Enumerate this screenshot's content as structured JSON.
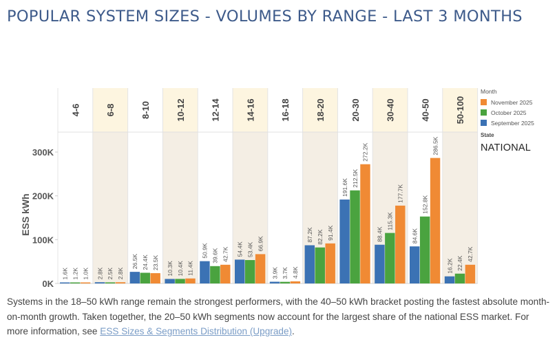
{
  "header": {
    "title": "POPULAR SYSTEM SIZES - VOLUMES BY RANGE - LAST 3 MONTHS"
  },
  "legend": {
    "title": "Month",
    "items": [
      {
        "label": "November 2025",
        "color": "#f08a34"
      },
      {
        "label": "October 2025",
        "color": "#4aa33f"
      },
      {
        "label": "September 2025",
        "color": "#3b72b4"
      }
    ]
  },
  "filter": {
    "state_label": "State",
    "state_value": "NATIONAL"
  },
  "caption": {
    "text": "Systems in the 18–50 kWh range remain the strongest performers, with the 40–50 kWh bracket posting the fastest absolute month-on-month growth. Taken together, the 20–50 kWh segments now account for the largest share of the national ESS market. For more information, see ",
    "link_text": "ESS Sizes & Segments Distribution (Upgrade)",
    "suffix": "."
  },
  "chart_data": {
    "type": "bar",
    "title": "POPULAR SYSTEM SIZES - VOLUMES BY RANGE - LAST 3 MONTHS",
    "xlabel": "",
    "ylabel": "ESS kWh",
    "ylim": [
      0,
      300000
    ],
    "yticks": [
      0,
      100000,
      200000,
      300000
    ],
    "ytick_labels": [
      "0K",
      "100K",
      "200K",
      "300K"
    ],
    "grid": false,
    "legend_position": "right",
    "categories": [
      "4-6",
      "6-8",
      "8-10",
      "10-12",
      "12-14",
      "14-16",
      "16-18",
      "18-20",
      "20-30",
      "30-40",
      "40-50",
      "50-100"
    ],
    "series": [
      {
        "name": "September 2025",
        "color": "#3b72b4",
        "values": [
          1600,
          2800,
          26500,
          10300,
          50900,
          54400,
          3900,
          87200,
          191600,
          88400,
          84600,
          16200
        ],
        "labels": [
          "1.6K",
          "2.8K",
          "26.5K",
          "10.3K",
          "50.9K",
          "54.4K",
          "3.9K",
          "87.2K",
          "191.6K",
          "88.4K",
          "84.6K",
          "16.2K"
        ]
      },
      {
        "name": "October 2025",
        "color": "#4aa33f",
        "values": [
          1200,
          2500,
          24400,
          10400,
          39600,
          53400,
          3700,
          82200,
          212500,
          115300,
          152800,
          22400
        ],
        "labels": [
          "1.2K",
          "2.5K",
          "24.4K",
          "10.4K",
          "39.6K",
          "53.4K",
          "3.7K",
          "82.2K",
          "212.5K",
          "115.3K",
          "152.8K",
          "22.4K"
        ]
      },
      {
        "name": "November 2025",
        "color": "#f08a34",
        "values": [
          1000,
          2800,
          23500,
          11400,
          42700,
          66900,
          4800,
          91400,
          272200,
          177700,
          286500,
          42700
        ],
        "labels": [
          "1.0K",
          "2.8K",
          "23.5K",
          "11.4K",
          "42.7K",
          "66.9K",
          "4.8K",
          "91.4K",
          "272.2K",
          "177.7K",
          "286.5K",
          "42.7K"
        ]
      }
    ]
  }
}
